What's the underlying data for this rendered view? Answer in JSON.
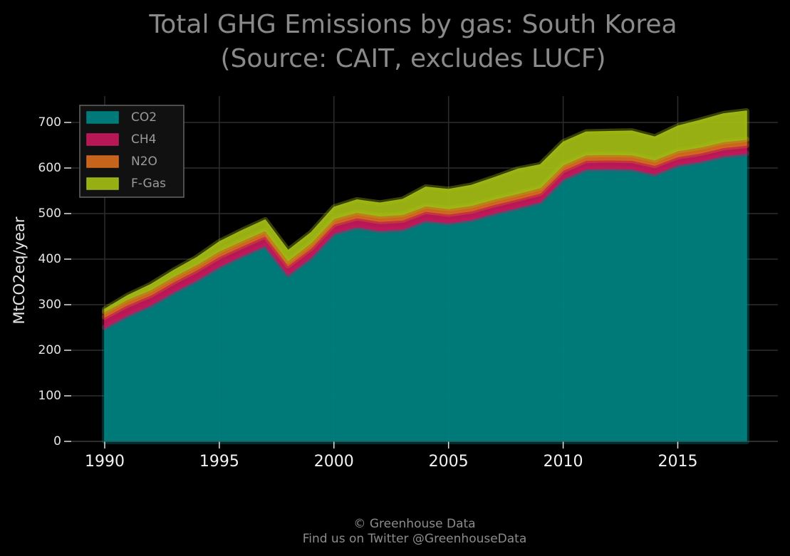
{
  "chart_data": {
    "type": "area",
    "stacked": true,
    "title": [
      "Total GHG Emissions by gas: South Korea",
      "(Source: CAIT, excludes LUCF)"
    ],
    "ylabel": "MtCO2eq/year",
    "xlabel": "",
    "xlim": [
      1990,
      2018
    ],
    "ylim": [
      0,
      750
    ],
    "x_ticks": [
      1990,
      1995,
      2000,
      2005,
      2010,
      2015
    ],
    "y_ticks": [
      0,
      100,
      200,
      300,
      400,
      500,
      600,
      700
    ],
    "grid": true,
    "legend_position": "top-left",
    "x": [
      1990,
      1991,
      1992,
      1993,
      1994,
      1995,
      1996,
      1997,
      1998,
      1999,
      2000,
      2001,
      2002,
      2003,
      2004,
      2005,
      2006,
      2007,
      2008,
      2009,
      2010,
      2011,
      2012,
      2013,
      2014,
      2015,
      2016,
      2017,
      2018
    ],
    "series": [
      {
        "name": "CO2",
        "color": "#008080",
        "values": [
          250,
          277,
          299,
          328,
          354,
          384,
          408,
          430,
          366,
          404,
          457,
          471,
          463,
          466,
          485,
          480,
          487,
          501,
          513,
          526,
          576,
          598,
          599,
          598,
          587,
          607,
          615,
          627,
          632
        ]
      },
      {
        "name": "CH4",
        "color": "#c2185b",
        "values": [
          23,
          23,
          22,
          22,
          22,
          22,
          21,
          21,
          20,
          20,
          20,
          20,
          20,
          20,
          20,
          19,
          19,
          19,
          19,
          19,
          19,
          19,
          19,
          19,
          19,
          18,
          18,
          18,
          18
        ]
      },
      {
        "name": "N2O",
        "color": "#d2691e",
        "values": [
          12,
          12,
          12,
          12,
          12,
          12,
          12,
          12,
          11,
          12,
          12,
          12,
          12,
          12,
          12,
          12,
          12,
          12,
          12,
          12,
          12,
          12,
          12,
          12,
          12,
          13,
          13,
          13,
          13
        ]
      },
      {
        "name": "F-Gas",
        "color": "#a0b814",
        "values": [
          5,
          8,
          11,
          13,
          15,
          20,
          22,
          23,
          22,
          22,
          25,
          27,
          28,
          33,
          41,
          42,
          44,
          47,
          53,
          50,
          50,
          50,
          50,
          52,
          50,
          54,
          59,
          61,
          62
        ]
      }
    ]
  },
  "footer": {
    "line1": "© Greenhouse Data",
    "line2": "Find us on Twitter @GreenhouseData"
  }
}
